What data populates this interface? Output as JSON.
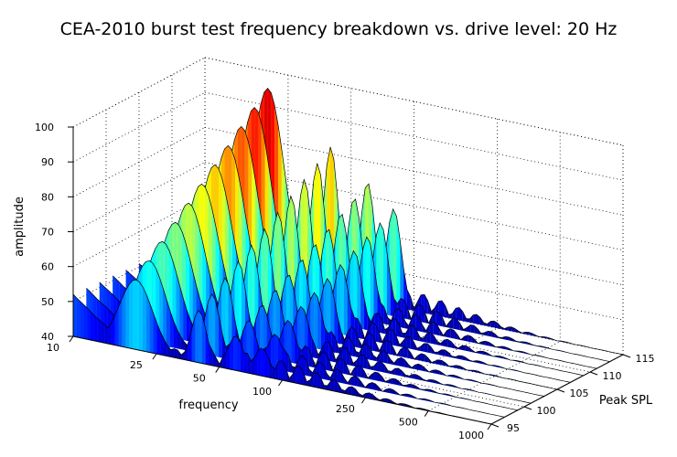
{
  "chart_data": {
    "type": "surface3d",
    "title": "CEA-2010 burst test frequency breakdown vs. drive level: 20 Hz",
    "xlabel": "frequency",
    "ylabel": "Peak SPL",
    "zlabel": "amplitude",
    "x_scale": "log",
    "x_ticks": [
      "10",
      "25",
      "50",
      "100",
      "250",
      "500",
      "1000"
    ],
    "x_tick_values": [
      10,
      25,
      50,
      100,
      250,
      500,
      1000
    ],
    "y_ticks": [
      "95",
      "100",
      "105",
      "110",
      "115"
    ],
    "y_tick_values": [
      95,
      100,
      105,
      110,
      115
    ],
    "z_ticks": [
      "40",
      "50",
      "60",
      "70",
      "80",
      "90",
      "100"
    ],
    "z_tick_values": [
      40,
      50,
      60,
      70,
      80,
      90,
      100
    ],
    "xlim": [
      10,
      1000
    ],
    "ylim": [
      95,
      115
    ],
    "zlim": [
      40,
      100
    ],
    "grid": true,
    "colormap": [
      "#00008f",
      "#0000ff",
      "#0080ff",
      "#00ffff",
      "#80ff80",
      "#ffff00",
      "#ff8000",
      "#ff0000",
      "#800000"
    ],
    "fundamental_peak": {
      "x": 20,
      "y": [
        95,
        97,
        99,
        101,
        103,
        105,
        107,
        109,
        111,
        113,
        115
      ],
      "z": [
        60,
        63.5,
        67,
        70.5,
        74,
        77.5,
        81,
        84.5,
        88,
        91.5,
        95
      ]
    },
    "harmonic_peaks": [
      {
        "x": 40,
        "z_range": [
          55,
          82
        ]
      },
      {
        "x": 60,
        "z_range": [
          50,
          74
        ]
      },
      {
        "x": 80,
        "z_range": [
          48,
          68
        ]
      }
    ],
    "floor_z": 40
  }
}
